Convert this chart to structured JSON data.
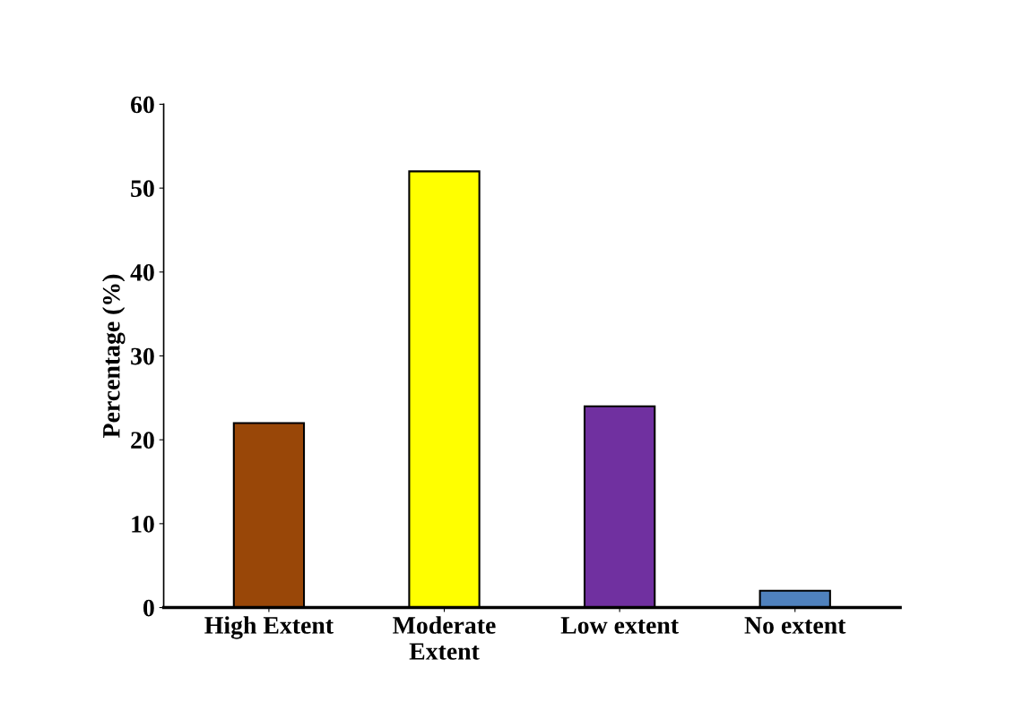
{
  "chart_data": {
    "type": "bar",
    "ylabel": "Percentage (%)",
    "categories": [
      "High Extent",
      "Moderate\nExtent",
      "Low extent",
      "No extent"
    ],
    "values": [
      22,
      52,
      24,
      2
    ],
    "colors": [
      "#994708",
      "#ffff00",
      "#7030a0",
      "#4f81bd"
    ],
    "ylim": [
      0,
      60
    ],
    "yticks": [
      0,
      10,
      20,
      30,
      40,
      50,
      60
    ],
    "grid": false
  }
}
